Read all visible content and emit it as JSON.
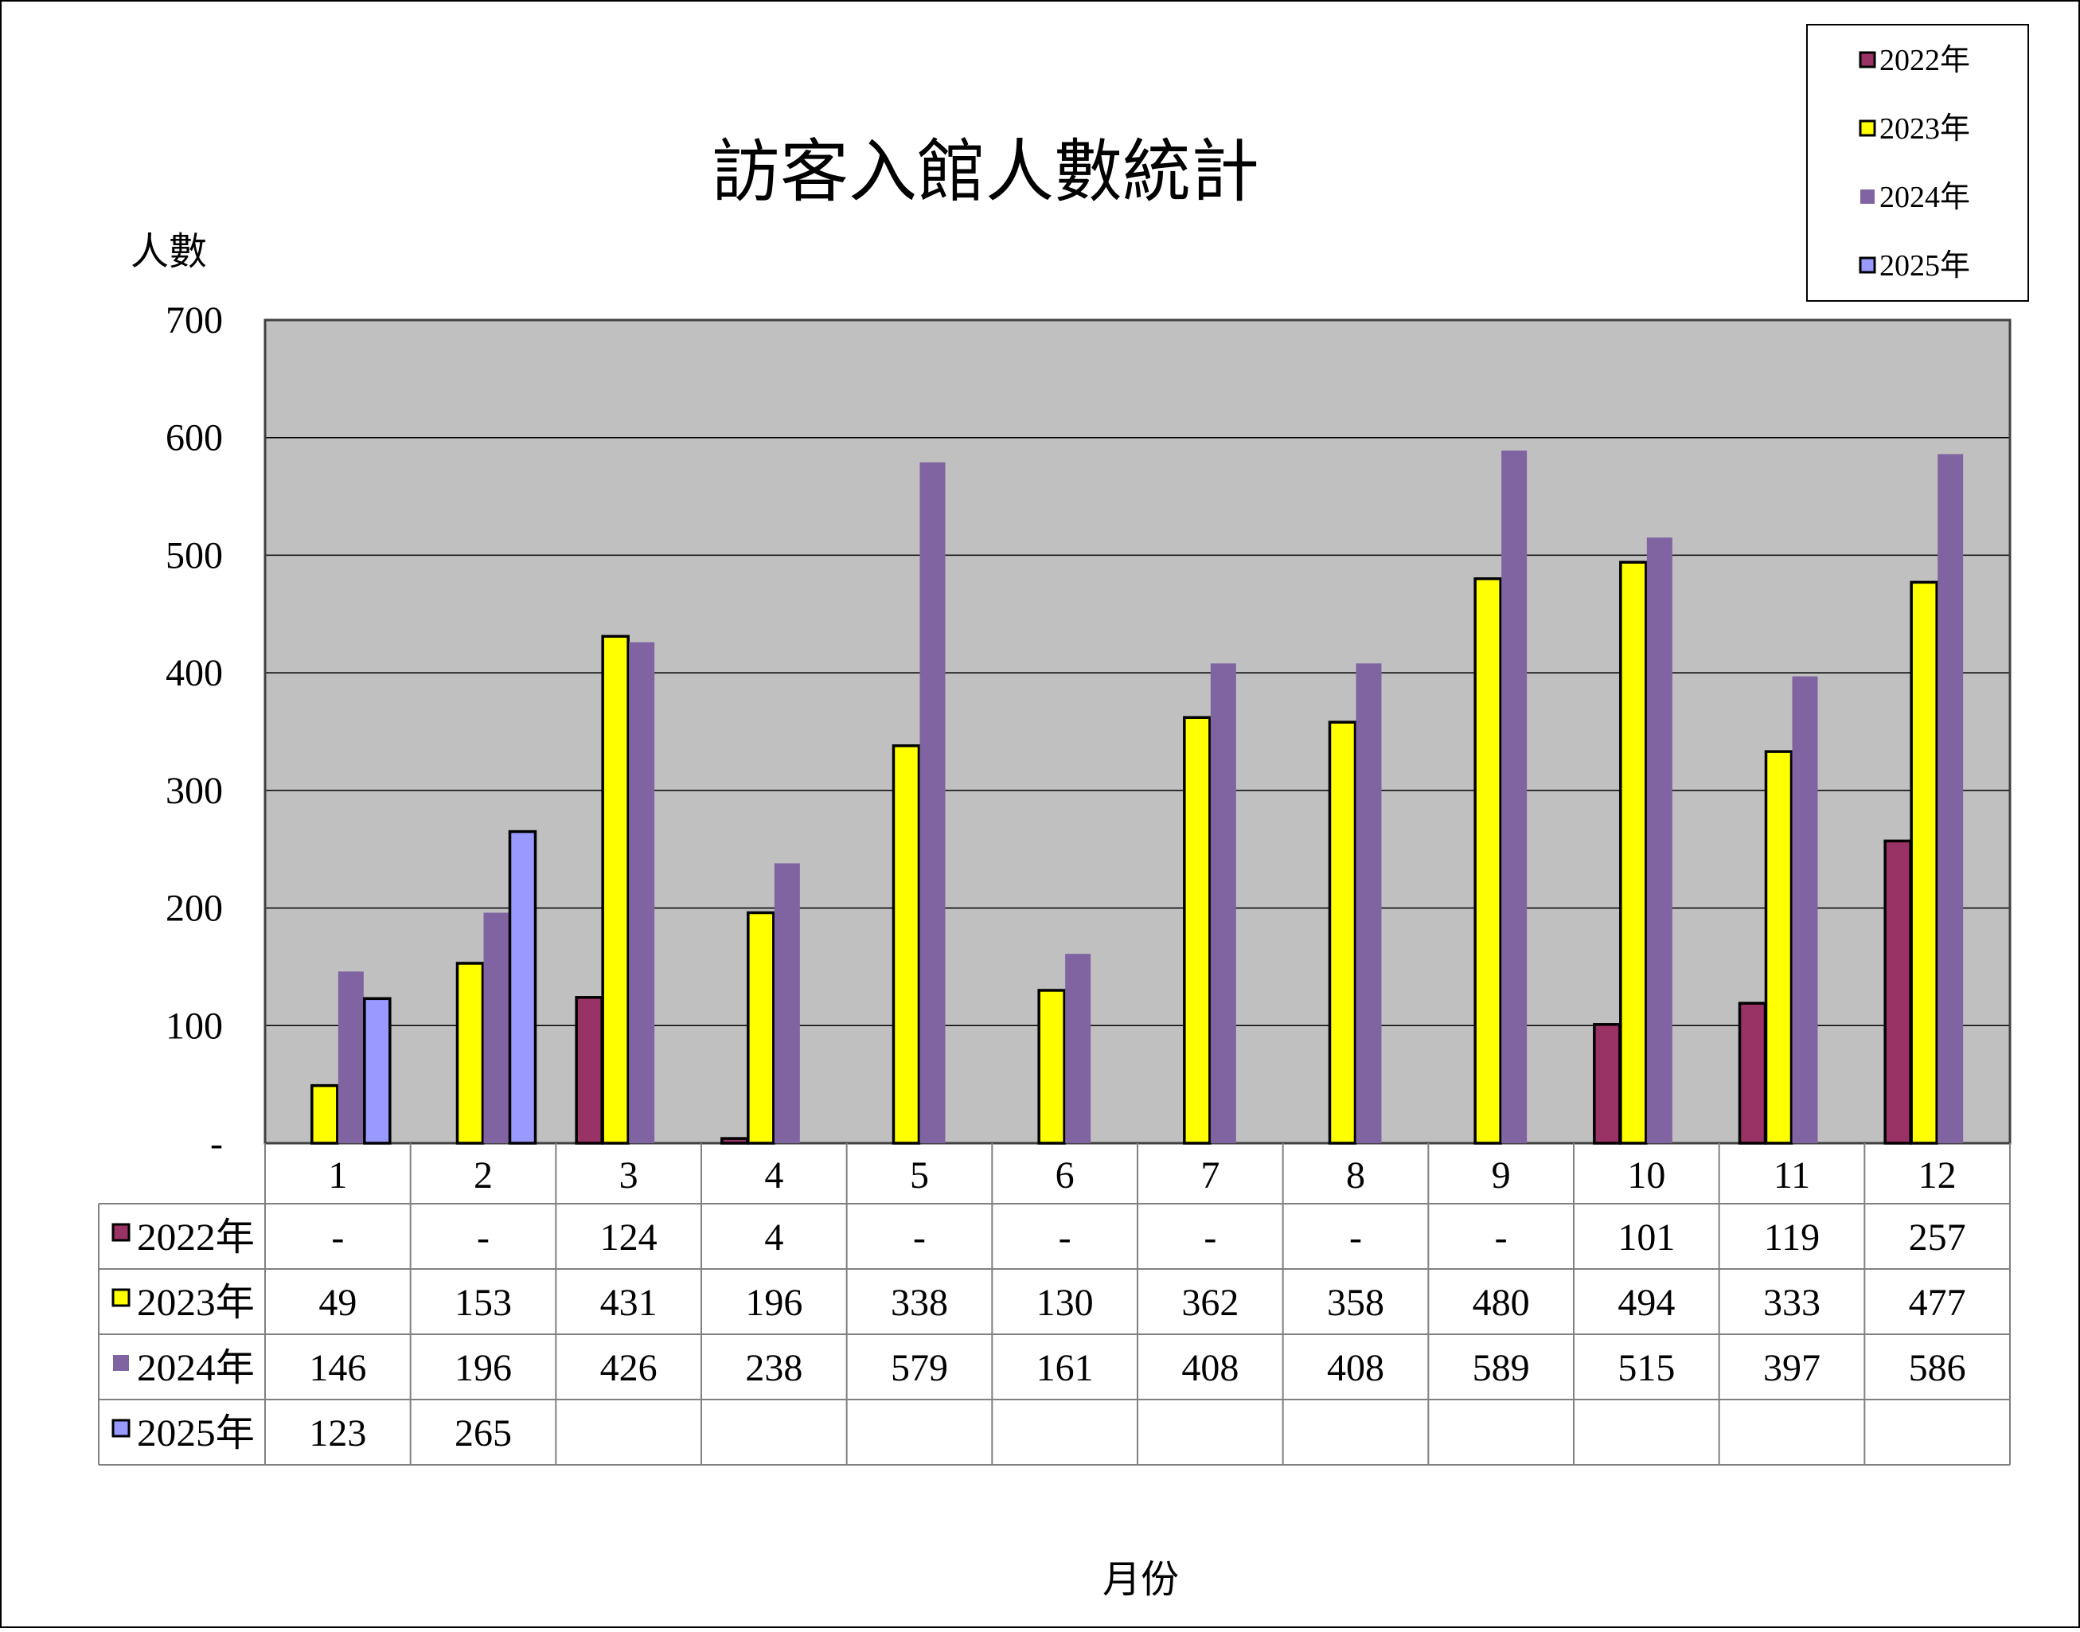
{
  "chart_data": {
    "type": "bar",
    "title": "訪客入館人數統計",
    "ylabel": "人數",
    "xlabel": "月份",
    "ylim": [
      0,
      700
    ],
    "yticks": [
      {
        "value": 0,
        "label": "-"
      },
      {
        "value": 100,
        "label": "100"
      },
      {
        "value": 200,
        "label": "200"
      },
      {
        "value": 300,
        "label": "300"
      },
      {
        "value": 400,
        "label": "400"
      },
      {
        "value": 500,
        "label": "500"
      },
      {
        "value": 600,
        "label": "600"
      },
      {
        "value": 700,
        "label": "700"
      }
    ],
    "categories": [
      "1",
      "2",
      "3",
      "4",
      "5",
      "6",
      "7",
      "8",
      "9",
      "10",
      "11",
      "12"
    ],
    "grid": true,
    "legend_position": "top-right",
    "plot_background": "#C0C0C0",
    "series": [
      {
        "name": "2022年",
        "color": "#993366",
        "outlined": true,
        "values": [
          null,
          null,
          124,
          4,
          null,
          null,
          null,
          null,
          null,
          101,
          119,
          257
        ],
        "table_labels": [
          "-",
          "-",
          "124",
          "4",
          "-",
          "-",
          "-",
          "-",
          "-",
          "101",
          "119",
          "257"
        ]
      },
      {
        "name": "2023年",
        "color": "#FFFF00",
        "outlined": true,
        "values": [
          49,
          153,
          431,
          196,
          338,
          130,
          362,
          358,
          480,
          494,
          333,
          477
        ],
        "table_labels": [
          "49",
          "153",
          "431",
          "196",
          "338",
          "130",
          "362",
          "358",
          "480",
          "494",
          "333",
          "477"
        ]
      },
      {
        "name": "2024年",
        "color": "#8064A2",
        "outlined": false,
        "values": [
          146,
          196,
          426,
          238,
          579,
          161,
          408,
          408,
          589,
          515,
          397,
          586
        ],
        "table_labels": [
          "146",
          "196",
          "426",
          "238",
          "579",
          "161",
          "408",
          "408",
          "589",
          "515",
          "397",
          "586"
        ]
      },
      {
        "name": "2025年",
        "color": "#9999FF",
        "outlined": true,
        "values": [
          123,
          265,
          null,
          null,
          null,
          null,
          null,
          null,
          null,
          null,
          null,
          null
        ],
        "table_labels": [
          "123",
          "265",
          "",
          "",
          "",
          "",
          "",
          "",
          "",
          "",
          "",
          ""
        ]
      }
    ]
  }
}
